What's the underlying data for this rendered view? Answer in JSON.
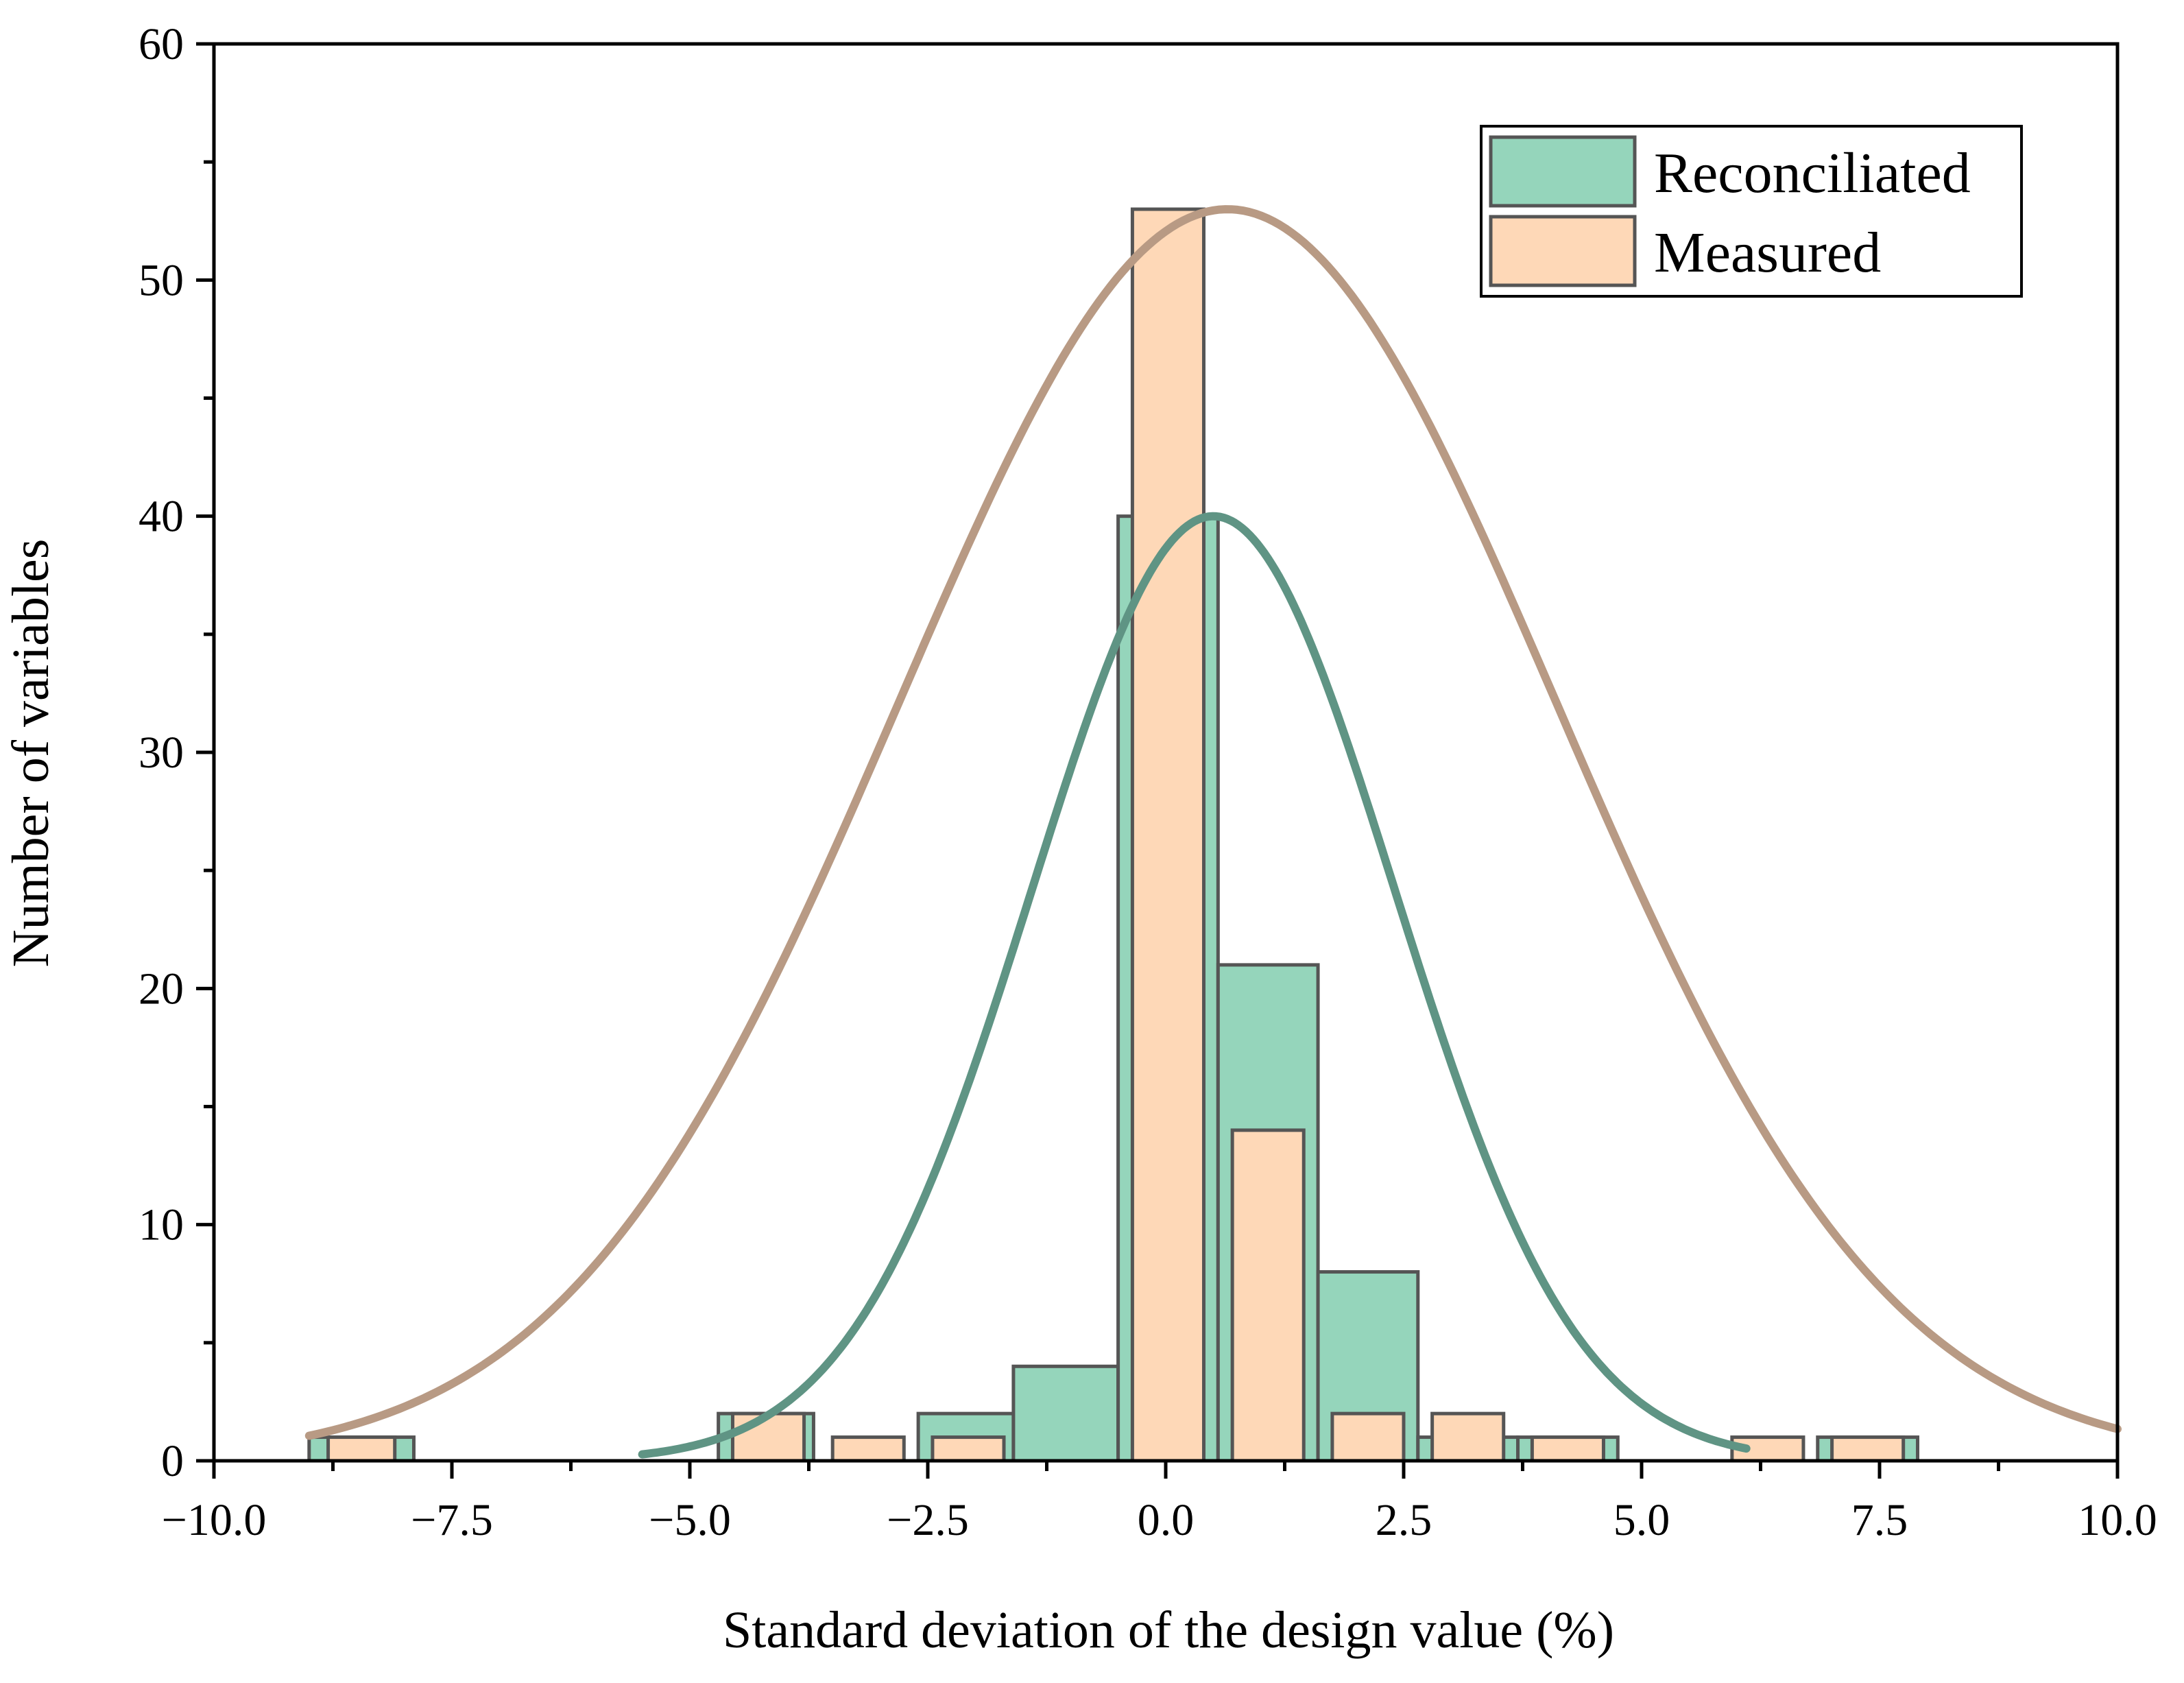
{
  "chart_data": {
    "type": "bar",
    "title": "",
    "xlabel": "Standard deviation of the design value (%)",
    "ylabel": "Number of variables",
    "xlim": [
      -10,
      10
    ],
    "ylim": [
      0,
      60
    ],
    "xticks": [
      -10,
      -7.5,
      -5,
      -2.5,
      0,
      2.5,
      5,
      7.5,
      10
    ],
    "xtick_labels": [
      "−10.0",
      "−7.5",
      "−5.0",
      "−2.5",
      "0.0",
      "2.5",
      "5.0",
      "7.5",
      "10.0"
    ],
    "yticks": [
      0,
      10,
      20,
      30,
      40,
      50,
      60
    ],
    "ytick_labels": [
      "0",
      "10",
      "20",
      "30",
      "40",
      "50",
      "60"
    ],
    "legend_position": "top-right",
    "series": [
      {
        "name": "Reconciliated",
        "color": "#95d5bb",
        "edge_color": "#555555",
        "curve_color": "#5f9484",
        "bins": [
          {
            "x0": -9.0,
            "x1": -7.9,
            "count": 1
          },
          {
            "x0": -4.7,
            "x1": -3.7,
            "count": 2
          },
          {
            "x0": -2.6,
            "x1": -1.6,
            "count": 2
          },
          {
            "x0": -1.6,
            "x1": -0.5,
            "count": 4
          },
          {
            "x0": -0.5,
            "x1": 0.55,
            "count": 40
          },
          {
            "x0": 0.55,
            "x1": 1.6,
            "count": 21
          },
          {
            "x0": 1.6,
            "x1": 2.65,
            "count": 8
          },
          {
            "x0": 2.65,
            "x1": 3.7,
            "count": 1
          },
          {
            "x0": 3.7,
            "x1": 4.75,
            "count": 1
          },
          {
            "x0": 6.85,
            "x1": 7.9,
            "count": 1
          }
        ],
        "fit": {
          "mean": 0.5,
          "sd": 1.9,
          "peak": 40,
          "x_from": -5.5,
          "x_to": 6.1
        }
      },
      {
        "name": "Measured",
        "color": "#fed8b7",
        "edge_color": "#555555",
        "curve_color": "#b89a84",
        "bins": [
          {
            "x0": -8.8,
            "x1": -8.1,
            "count": 1
          },
          {
            "x0": -4.55,
            "x1": -3.8,
            "count": 2
          },
          {
            "x0": -3.5,
            "x1": -2.75,
            "count": 1
          },
          {
            "x0": -2.45,
            "x1": -1.7,
            "count": 1
          },
          {
            "x0": -0.35,
            "x1": 0.4,
            "count": 53
          },
          {
            "x0": 0.7,
            "x1": 1.45,
            "count": 14
          },
          {
            "x0": 1.75,
            "x1": 2.5,
            "count": 2
          },
          {
            "x0": 2.8,
            "x1": 3.55,
            "count": 2
          },
          {
            "x0": 3.85,
            "x1": 4.6,
            "count": 1
          },
          {
            "x0": 5.95,
            "x1": 6.7,
            "count": 1
          },
          {
            "x0": 7.0,
            "x1": 7.75,
            "count": 1
          }
        ],
        "fit": {
          "mean": 0.65,
          "sd": 3.45,
          "peak": 53,
          "x_from": -9.0,
          "x_to": 10.0
        }
      }
    ]
  }
}
